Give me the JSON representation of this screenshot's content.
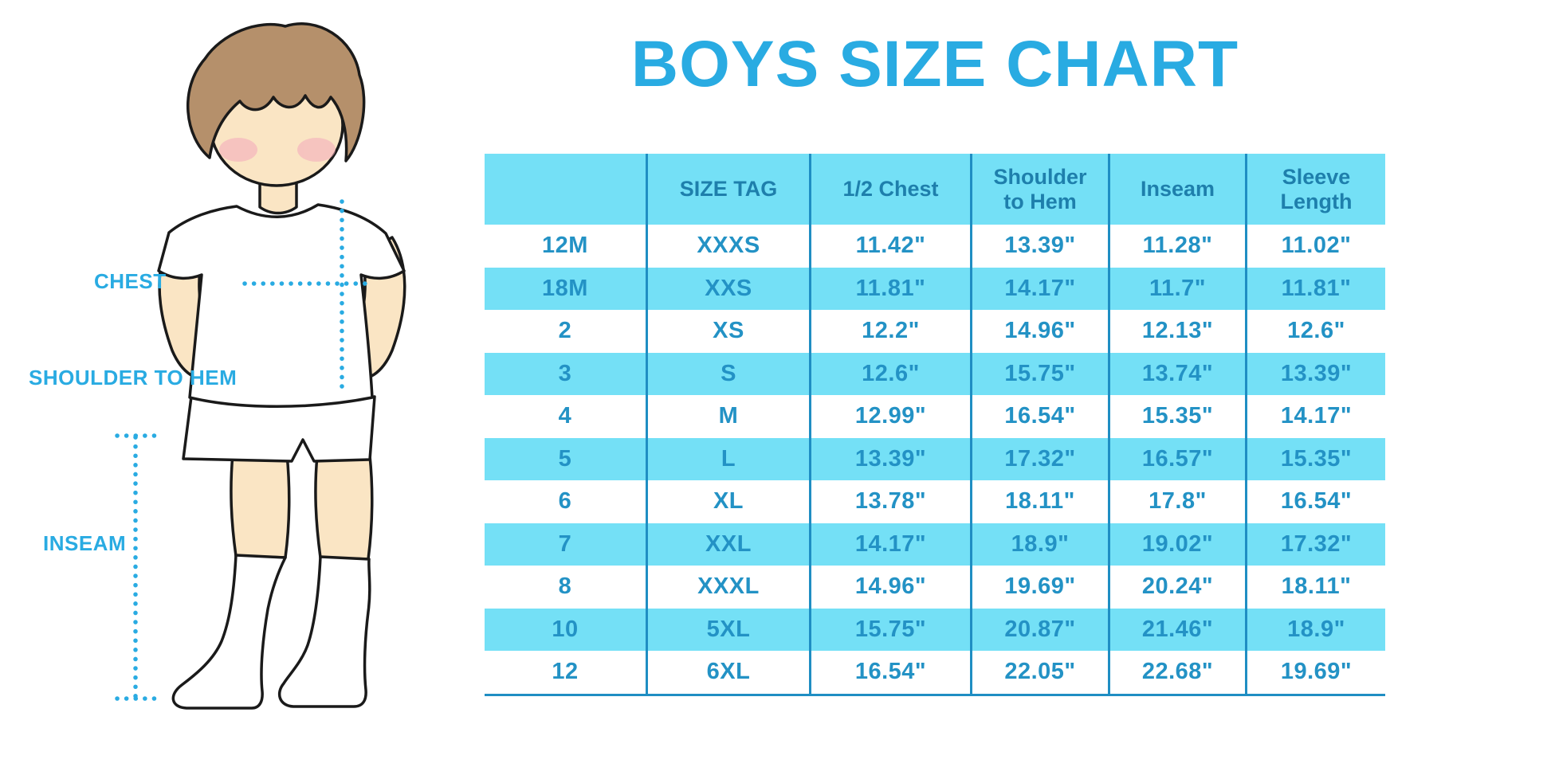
{
  "page": {
    "title": "BOYS SIZE CHART"
  },
  "measurement_labels": {
    "chest": "CHEST",
    "shoulder_to_hem": "SHOULDER TO HEM",
    "inseam": "INSEAM"
  },
  "chart_data": {
    "type": "table",
    "title": "BOYS SIZE CHART",
    "columns": [
      "",
      "SIZE TAG",
      "1/2 Chest",
      "Shoulder to Hem",
      "Inseam",
      "Sleeve Length"
    ],
    "rows": [
      [
        "12M",
        "XXXS",
        "11.42\"",
        "13.39\"",
        "11.28\"",
        "11.02\""
      ],
      [
        "18M",
        "XXS",
        "11.81\"",
        "14.17\"",
        "11.7\"",
        "11.81\""
      ],
      [
        "2",
        "XS",
        "12.2\"",
        "14.96\"",
        "12.13\"",
        "12.6\""
      ],
      [
        "3",
        "S",
        "12.6\"",
        "15.75\"",
        "13.74\"",
        "13.39\""
      ],
      [
        "4",
        "M",
        "12.99\"",
        "16.54\"",
        "15.35\"",
        "14.17\""
      ],
      [
        "5",
        "L",
        "13.39\"",
        "17.32\"",
        "16.57\"",
        "15.35\""
      ],
      [
        "6",
        "XL",
        "13.78\"",
        "18.11\"",
        "17.8\"",
        "16.54\""
      ],
      [
        "7",
        "XXL",
        "14.17\"",
        "18.9\"",
        "19.02\"",
        "17.32\""
      ],
      [
        "8",
        "XXXL",
        "14.96\"",
        "19.69\"",
        "20.24\"",
        "18.11\""
      ],
      [
        "10",
        "5XL",
        "15.75\"",
        "20.87\"",
        "21.46\"",
        "18.9\""
      ],
      [
        "12",
        "6XL",
        "16.54\"",
        "22.05\"",
        "22.68\"",
        "19.69\""
      ]
    ],
    "layout": {
      "striped_rows": "alternating white and light blue, header light blue",
      "grid": "vertical column separators + bottom border"
    }
  },
  "colors": {
    "accent_blue": "#29ABE2",
    "header_bg": "#74E0F6",
    "stripe_bg": "#74E0F6",
    "header_text": "#1E7FAC",
    "cell_text": "#2392C5",
    "grid_line": "#1F8EC3",
    "skin": "#FAE5C4",
    "hair": "#B5906B",
    "cheek": "#F3A9BC",
    "outline": "#1A1A1A"
  }
}
